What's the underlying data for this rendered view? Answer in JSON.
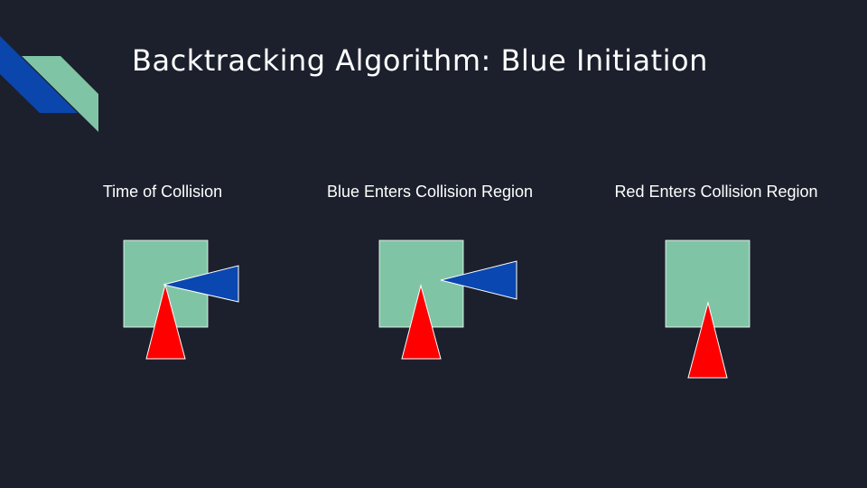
{
  "title": "Backtracking Algorithm: Blue Initiation",
  "colors": {
    "background": "#1b202c",
    "accent_green": "#80c4a6",
    "accent_blue": "#0b46ad",
    "collision_region": "#80c4a6",
    "blue_vehicle": "#0a47b0",
    "red_vehicle": "#ff0000",
    "outline": "#ffffff"
  },
  "panels": [
    {
      "caption": "Time of Collision"
    },
    {
      "caption": "Blue Enters Collision Region"
    },
    {
      "caption": "Red Enters Collision Region"
    }
  ]
}
